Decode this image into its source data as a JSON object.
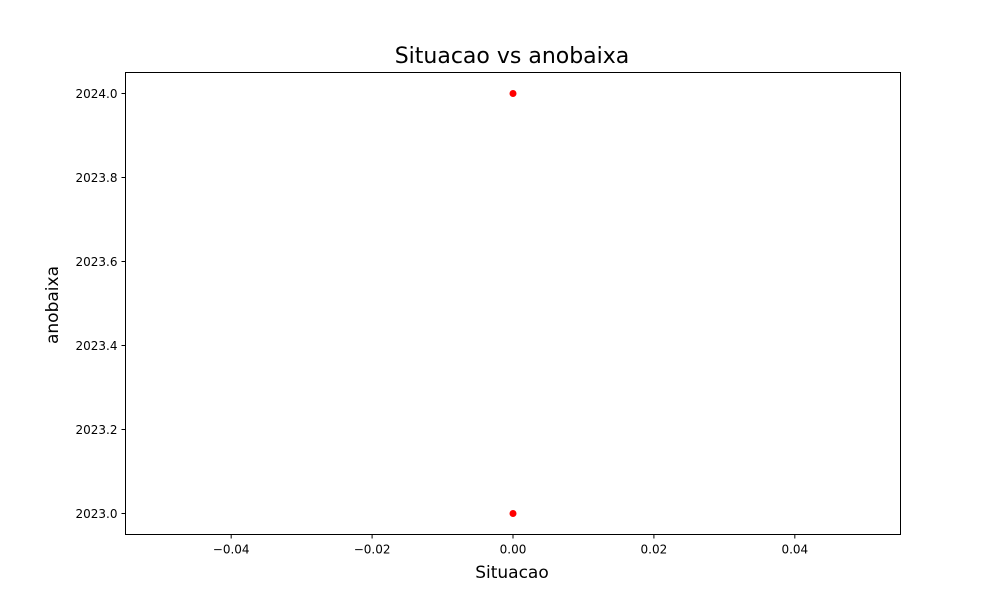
{
  "chart_data": {
    "type": "scatter",
    "title": "Situacao vs anobaixa",
    "xlabel": "Situacao",
    "ylabel": "anobaixa",
    "xlim": [
      -0.055,
      0.055
    ],
    "ylim": [
      2022.95,
      2024.05
    ],
    "xticks": [
      -0.04,
      -0.02,
      0.0,
      0.02,
      0.04
    ],
    "xtick_labels": [
      "−0.04",
      "−0.02",
      "0.00",
      "0.02",
      "0.04"
    ],
    "yticks": [
      2023.0,
      2023.2,
      2023.4,
      2023.6,
      2023.8,
      2024.0
    ],
    "ytick_labels": [
      "2023.0",
      "2023.2",
      "2023.4",
      "2023.6",
      "2023.8",
      "2024.0"
    ],
    "grid": false,
    "series": [
      {
        "color": "#ff0000",
        "points": [
          {
            "x": 0,
            "y": 2024
          },
          {
            "x": 0,
            "y": 2023
          }
        ]
      }
    ]
  }
}
